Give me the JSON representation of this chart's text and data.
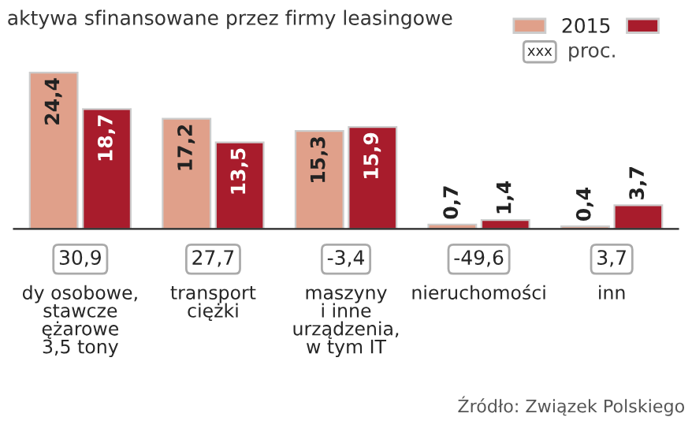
{
  "chart_data": {
    "type": "bar",
    "title": "aktywa sfinansowane przez firmy leasingowe",
    "categories": [
      "dy osobowe,\nstawcze\nężarowe\n3,5 tony",
      "transport\nciężki",
      "maszyny\ni inne\nurządzenia,\nw tym IT",
      "nieruchomości",
      "inn"
    ],
    "series": [
      {
        "name": "2015",
        "color": "#e0a08a",
        "values": [
          24.4,
          17.2,
          15.3,
          0.7,
          0.4
        ],
        "value_labels": [
          "24,4",
          "17,2",
          "15,3",
          "0,7",
          "0,4"
        ]
      },
      {
        "color": "#a81c2c",
        "values": [
          18.7,
          13.5,
          15.9,
          1.4,
          3.7
        ],
        "value_labels": [
          "18,7",
          "13,5",
          "15,9",
          "1,4",
          "3,7"
        ]
      }
    ],
    "legend": "top right",
    "annotations": [
      "xxx",
      "proc.",
      "30,9",
      "27,7",
      "-3,4",
      "-49,6",
      "3,7",
      "Źródło: Związek Polskiego"
    ]
  }
}
